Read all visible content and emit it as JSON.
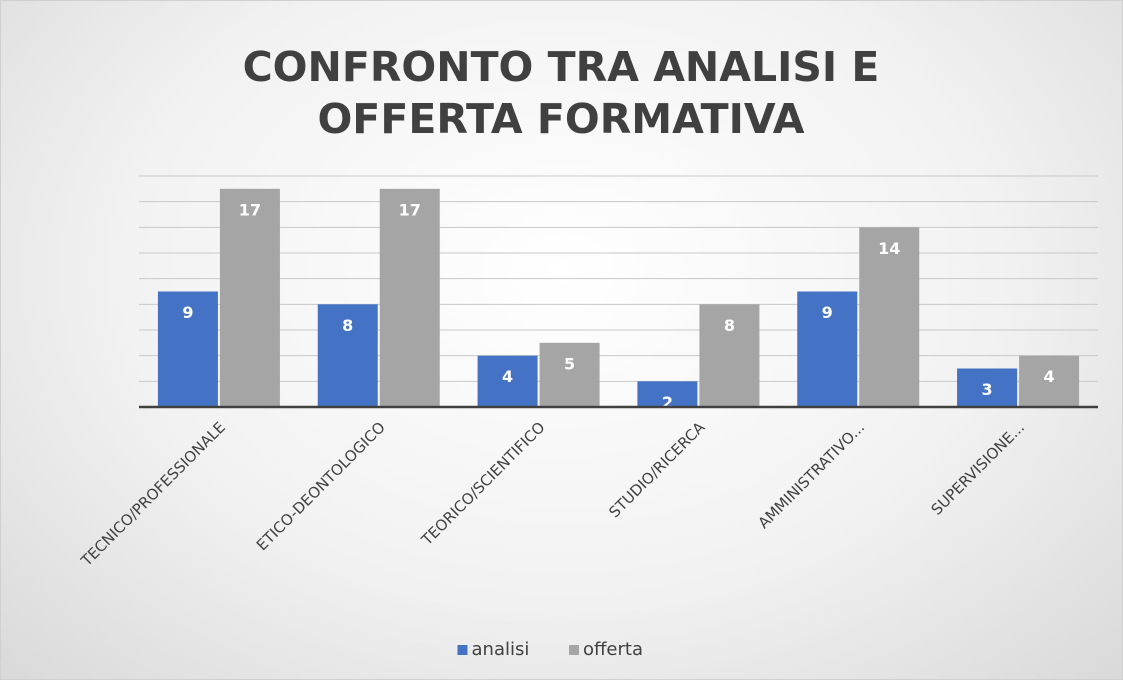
{
  "chart_data": {
    "type": "bar",
    "title": "CONFRONTO TRA ANALISI E OFFERTA FORMATIVA",
    "categories": [
      "TECNICO/PROFESSIONALE",
      "ETICO-DEONTOLOGICO",
      "TEORICO/SCIENTIFICO",
      "STUDIO/RICERCA",
      "AMMINISTRATIVO...",
      "SUPERVISIONE..."
    ],
    "series": [
      {
        "name": "analisi",
        "color": "#4472c4",
        "values": [
          9,
          8,
          4,
          2,
          9,
          3
        ]
      },
      {
        "name": "offerta",
        "color": "#a5a5a5",
        "values": [
          17,
          17,
          5,
          8,
          14,
          4
        ]
      }
    ],
    "ylim": [
      0,
      18
    ],
    "yticks": [
      0,
      2,
      4,
      6,
      8,
      10,
      12,
      14,
      16,
      18
    ],
    "grid": true,
    "legend": "bottom"
  }
}
